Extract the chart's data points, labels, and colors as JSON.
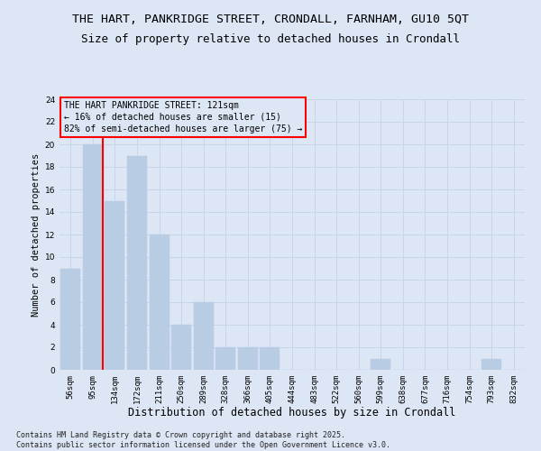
{
  "title1": "THE HART, PANKRIDGE STREET, CRONDALL, FARNHAM, GU10 5QT",
  "title2": "Size of property relative to detached houses in Crondall",
  "xlabel": "Distribution of detached houses by size in Crondall",
  "ylabel": "Number of detached properties",
  "categories": [
    "56sqm",
    "95sqm",
    "134sqm",
    "172sqm",
    "211sqm",
    "250sqm",
    "289sqm",
    "328sqm",
    "366sqm",
    "405sqm",
    "444sqm",
    "483sqm",
    "522sqm",
    "560sqm",
    "599sqm",
    "638sqm",
    "677sqm",
    "716sqm",
    "754sqm",
    "793sqm",
    "832sqm"
  ],
  "values": [
    9,
    20,
    15,
    19,
    12,
    4,
    6,
    2,
    2,
    2,
    0,
    0,
    0,
    0,
    1,
    0,
    0,
    0,
    0,
    1,
    0
  ],
  "bar_color": "#b8cce4",
  "bar_edge_color": "#b8cce4",
  "grid_color": "#c8d4e8",
  "bg_color": "#dce6f5",
  "red_line_x": 1.45,
  "ylim": [
    0,
    24
  ],
  "yticks": [
    0,
    2,
    4,
    6,
    8,
    10,
    12,
    14,
    16,
    18,
    20,
    22,
    24
  ],
  "annotation_box_text": "THE HART PANKRIDGE STREET: 121sqm\n← 16% of detached houses are smaller (15)\n82% of semi-detached houses are larger (75) →",
  "footer": "Contains HM Land Registry data © Crown copyright and database right 2025.\nContains public sector information licensed under the Open Government Licence v3.0.",
  "title1_fontsize": 9.5,
  "title2_fontsize": 9,
  "xlabel_fontsize": 8.5,
  "ylabel_fontsize": 7.5,
  "tick_fontsize": 6.5,
  "annotation_fontsize": 7,
  "footer_fontsize": 6
}
